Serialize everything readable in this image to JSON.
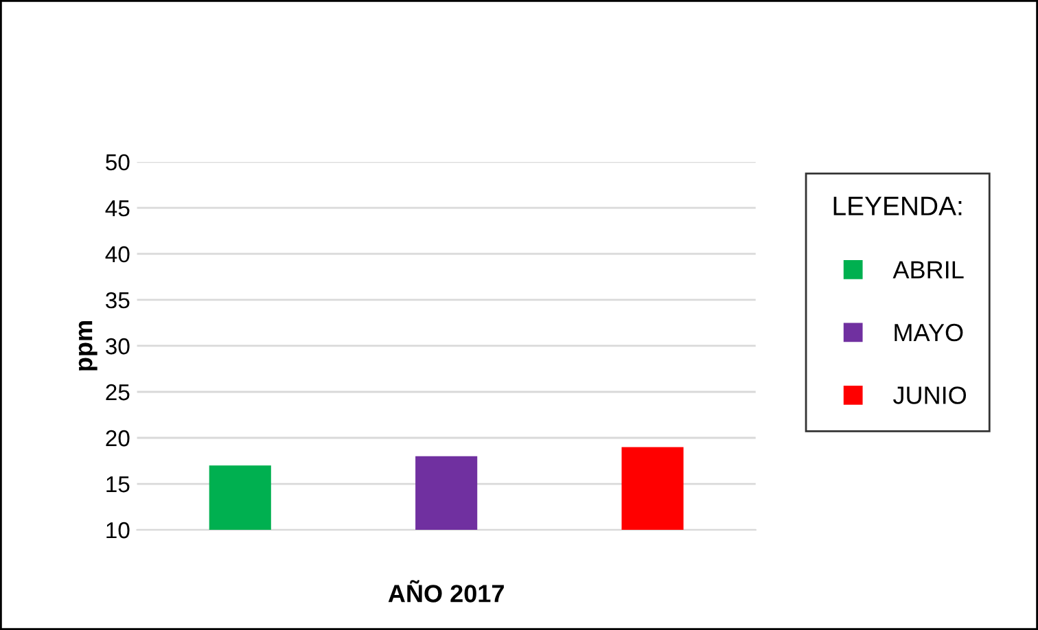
{
  "chart_data": {
    "type": "bar",
    "ylabel": "ppm",
    "xlabel": "AÑO 2017",
    "categories": [
      null,
      null,
      null
    ],
    "series": [
      {
        "name": "ABRIL",
        "color": "#00b050",
        "values": [
          17,
          null,
          null
        ]
      },
      {
        "name": "MAYO",
        "color": "#7030a0",
        "values": [
          null,
          18,
          null
        ]
      },
      {
        "name": "JUNIO",
        "color": "#ff0000",
        "values": [
          null,
          null,
          19
        ]
      }
    ],
    "ylim": [
      10,
      50
    ],
    "yticks": [
      10,
      15,
      20,
      25,
      30,
      35,
      40,
      45,
      50
    ],
    "grid": "y",
    "legend": "right",
    "legend_title": "LEYENDA:"
  }
}
